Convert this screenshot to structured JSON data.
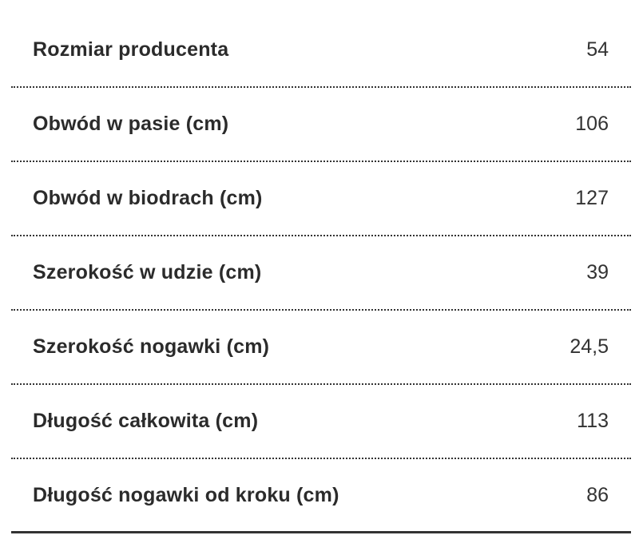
{
  "rows": [
    {
      "label": "Rozmiar producenta",
      "value": "54"
    },
    {
      "label": "Obwód w pasie (cm)",
      "value": "106"
    },
    {
      "label": "Obwód w biodrach (cm)",
      "value": "127"
    },
    {
      "label": "Szerokość w udzie (cm)",
      "value": "39"
    },
    {
      "label": "Szerokość nogawki (cm)",
      "value": "24,5"
    },
    {
      "label": "Długość całkowita (cm)",
      "value": "113"
    },
    {
      "label": "Długość nogawki od kroku (cm)",
      "value": "86"
    }
  ]
}
